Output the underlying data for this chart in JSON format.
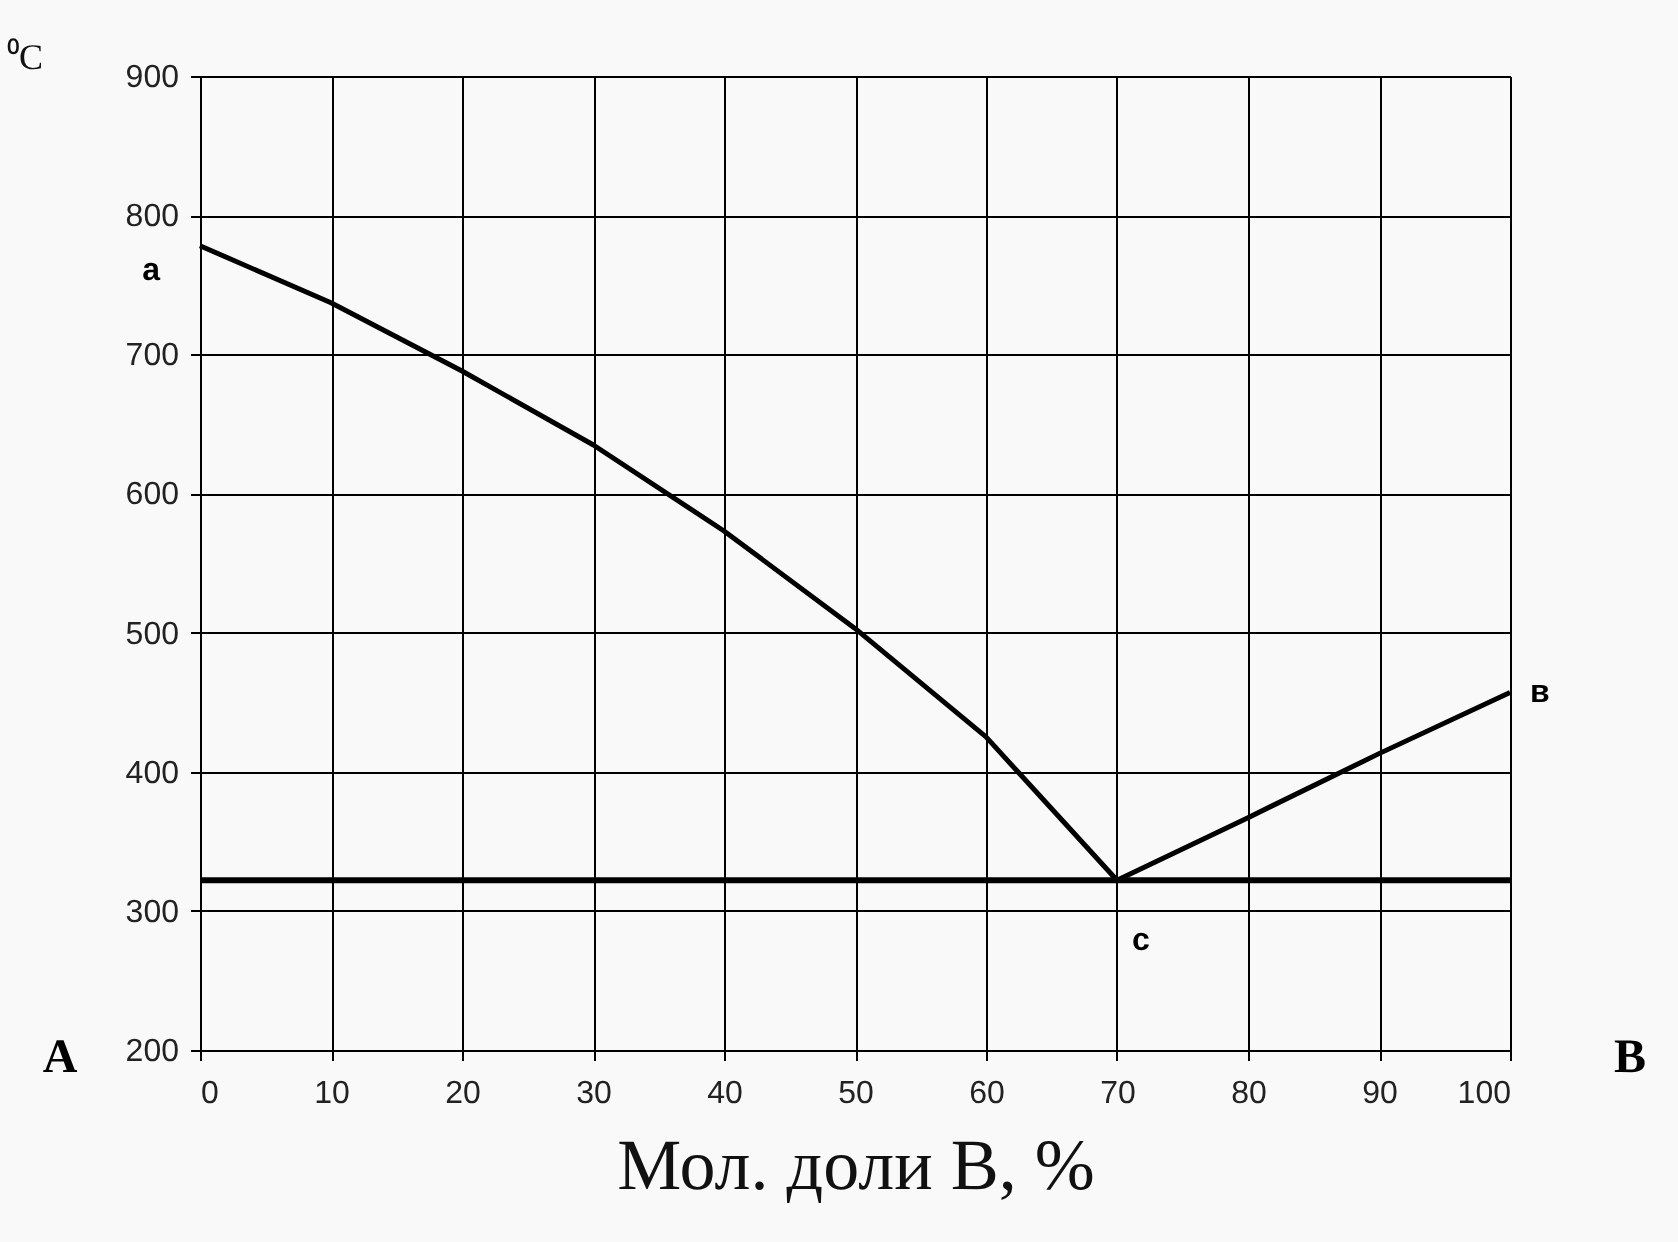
{
  "chart_data": {
    "type": "line",
    "xlabel": "Мол. доли B, %",
    "ylabel": "⁰C",
    "series": [
      {
        "color": "#000000",
        "x": [
          0,
          10,
          20,
          30,
          40,
          50,
          60,
          70
        ],
        "values": [
          778,
          737,
          688,
          635,
          573,
          503,
          425,
          322
        ]
      },
      {
        "color": "#000000",
        "x": [
          70,
          80,
          90,
          100
        ],
        "values": [
          322,
          367,
          413,
          457
        ]
      }
    ],
    "xlim": [
      0,
      100
    ],
    "xticks": [
      0,
      10,
      20,
      30,
      40,
      50,
      60,
      70,
      80,
      90,
      100
    ],
    "ylim": [
      200,
      900
    ],
    "yticks": [
      200,
      300,
      400,
      500,
      600,
      700,
      800,
      900
    ],
    "ref_lines": [
      {
        "axis": "y",
        "value": 322,
        "color": "#000000"
      }
    ],
    "annotations": [
      {
        "text": "a",
        "x": 0,
        "y": 778
      },
      {
        "text": "в",
        "x": 100,
        "y": 457
      },
      {
        "text": "c",
        "x": 70,
        "y": 322
      },
      "A",
      "B"
    ],
    "grid": true,
    "marker": "none",
    "line_style": "solid"
  }
}
